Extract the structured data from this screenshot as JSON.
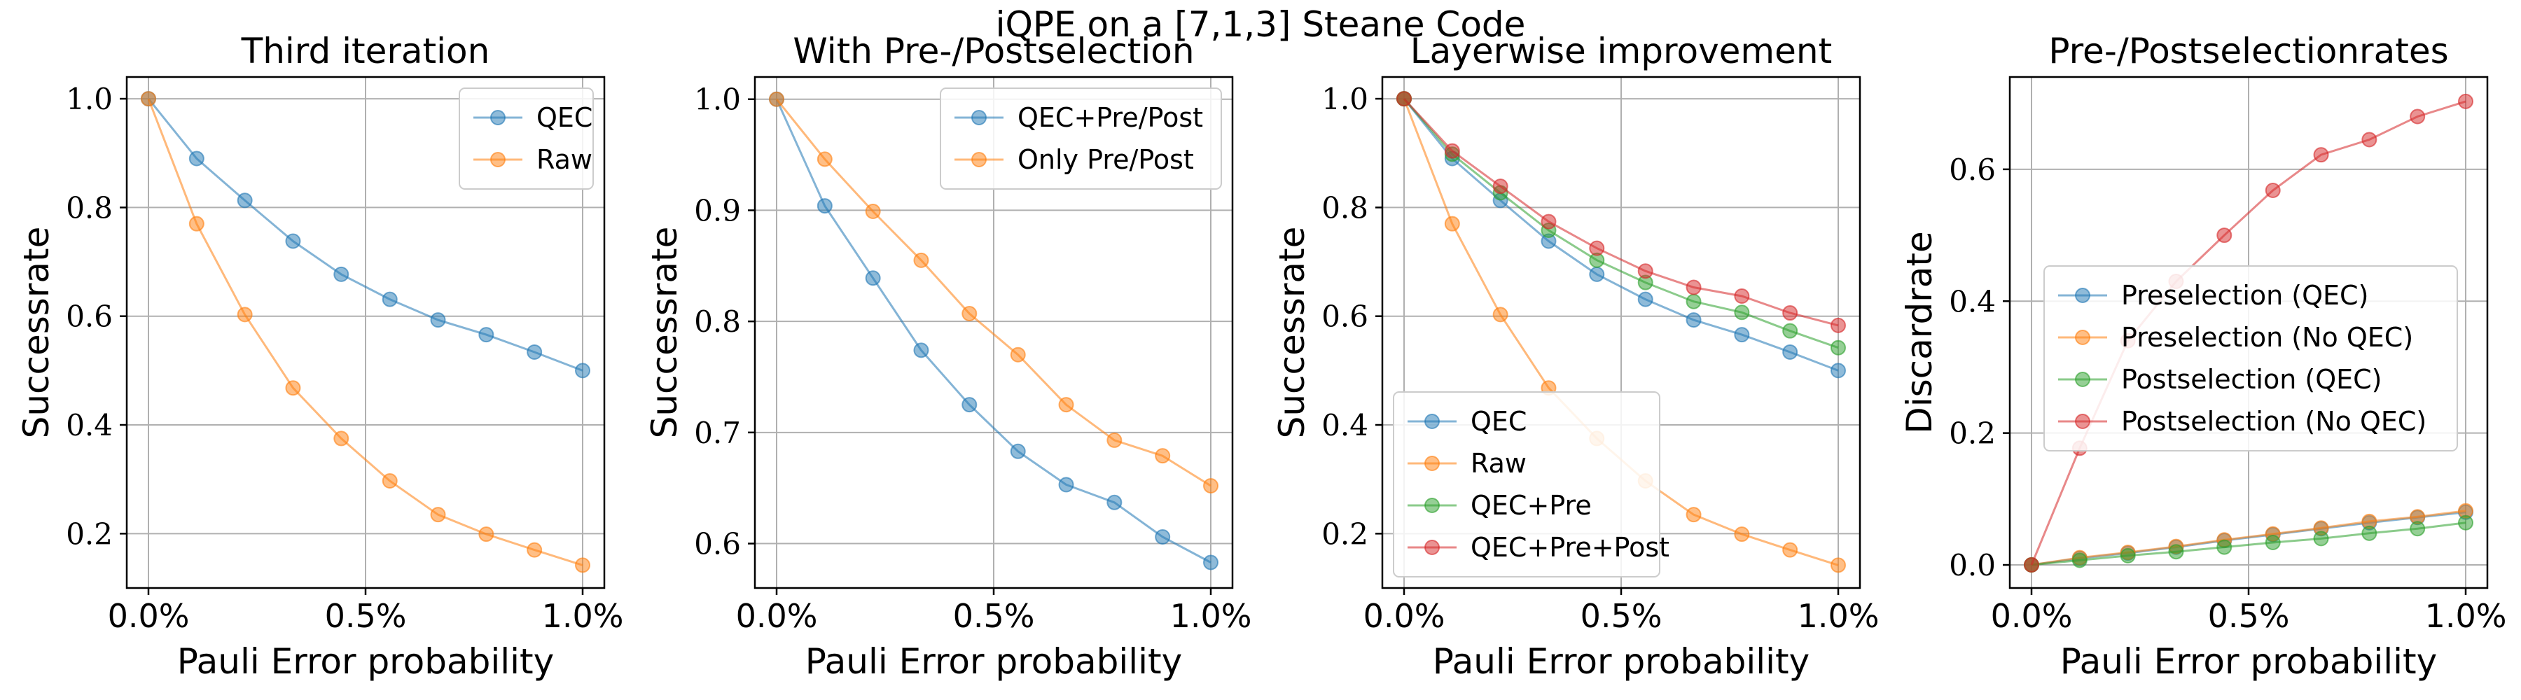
{
  "figure_title": "iQPE on a [7,1,3] Steane Code",
  "colors": {
    "blue": "#1f77b4",
    "orange": "#ff7f0e",
    "green": "#2ca02c",
    "red": "#d62728",
    "grid": "#b0b0b0",
    "axes": "#000000"
  },
  "chart_data": [
    {
      "type": "line",
      "title": "Third iteration",
      "xlabel": "Pauli Error probability",
      "ylabel": "Successrate",
      "x": [
        0,
        0.111,
        0.222,
        0.333,
        0.444,
        0.556,
        0.667,
        0.778,
        0.889,
        1.0
      ],
      "xlim": [
        -0.05,
        1.05
      ],
      "ylim": [
        0.1,
        1.04
      ],
      "xticks": [
        0,
        0.5,
        1.0
      ],
      "xtick_labels": [
        "0.0%",
        "0.5%",
        "1.0%"
      ],
      "yticks": [
        0.2,
        0.4,
        0.6,
        0.8,
        1.0
      ],
      "ytick_labels": [
        "0.2",
        "0.4",
        "0.6",
        "0.8",
        "1.0"
      ],
      "grid": true,
      "legend_position": "top-right",
      "series": [
        {
          "name": "QEC",
          "color": "#1f77b4",
          "values": [
            1.0,
            0.89,
            0.813,
            0.738,
            0.677,
            0.631,
            0.593,
            0.566,
            0.534,
            0.5
          ]
        },
        {
          "name": "Raw",
          "color": "#ff7f0e",
          "values": [
            1.0,
            0.77,
            0.603,
            0.468,
            0.375,
            0.297,
            0.235,
            0.199,
            0.17,
            0.142
          ]
        }
      ]
    },
    {
      "type": "line",
      "title": "With Pre-/Postselection",
      "xlabel": "Pauli Error probability",
      "ylabel": "Successrate",
      "x": [
        0,
        0.111,
        0.222,
        0.333,
        0.444,
        0.556,
        0.667,
        0.778,
        0.889,
        1.0
      ],
      "xlim": [
        -0.05,
        1.05
      ],
      "ylim": [
        0.56,
        1.02
      ],
      "xticks": [
        0,
        0.5,
        1.0
      ],
      "xtick_labels": [
        "0.0%",
        "0.5%",
        "1.0%"
      ],
      "yticks": [
        0.6,
        0.7,
        0.8,
        0.9,
        1.0
      ],
      "ytick_labels": [
        "0.6",
        "0.7",
        "0.8",
        "0.9",
        "1.0"
      ],
      "grid": true,
      "legend_position": "top-right",
      "series": [
        {
          "name": "QEC+Pre/Post",
          "color": "#1f77b4",
          "values": [
            1.0,
            0.904,
            0.839,
            0.774,
            0.725,
            0.683,
            0.653,
            0.637,
            0.606,
            0.583
          ]
        },
        {
          "name": "Only Pre/Post",
          "color": "#ff7f0e",
          "values": [
            1.0,
            0.946,
            0.899,
            0.855,
            0.807,
            0.77,
            0.725,
            0.693,
            0.679,
            0.652
          ]
        }
      ]
    },
    {
      "type": "line",
      "title": "Layerwise improvement",
      "xlabel": "Pauli Error probability",
      "ylabel": "Successrate",
      "x": [
        0,
        0.111,
        0.222,
        0.333,
        0.444,
        0.556,
        0.667,
        0.778,
        0.889,
        1.0
      ],
      "xlim": [
        -0.05,
        1.05
      ],
      "ylim": [
        0.1,
        1.04
      ],
      "xticks": [
        0,
        0.5,
        1.0
      ],
      "xtick_labels": [
        "0.0%",
        "0.5%",
        "1.0%"
      ],
      "yticks": [
        0.2,
        0.4,
        0.6,
        0.8,
        1.0
      ],
      "ytick_labels": [
        "0.2",
        "0.4",
        "0.6",
        "0.8",
        "1.0"
      ],
      "grid": true,
      "legend_position": "bottom-left",
      "series": [
        {
          "name": "QEC",
          "color": "#1f77b4",
          "values": [
            1.0,
            0.89,
            0.813,
            0.738,
            0.677,
            0.631,
            0.593,
            0.566,
            0.534,
            0.5
          ]
        },
        {
          "name": "Raw",
          "color": "#ff7f0e",
          "values": [
            1.0,
            0.77,
            0.603,
            0.468,
            0.375,
            0.297,
            0.235,
            0.199,
            0.17,
            0.142
          ]
        },
        {
          "name": "QEC+Pre",
          "color": "#2ca02c",
          "values": [
            1.0,
            0.898,
            0.827,
            0.758,
            0.703,
            0.662,
            0.627,
            0.607,
            0.573,
            0.542
          ]
        },
        {
          "name": "QEC+Pre+Post",
          "color": "#d62728",
          "values": [
            1.0,
            0.904,
            0.839,
            0.774,
            0.725,
            0.683,
            0.653,
            0.637,
            0.606,
            0.583
          ]
        }
      ]
    },
    {
      "type": "line",
      "title": "Pre-/Postselectionrates",
      "xlabel": "Pauli Error probability",
      "ylabel": "Discardrate",
      "x": [
        0,
        0.111,
        0.222,
        0.333,
        0.444,
        0.556,
        0.667,
        0.778,
        0.889,
        1.0
      ],
      "xlim": [
        -0.05,
        1.05
      ],
      "ylim": [
        -0.035,
        0.74
      ],
      "xticks": [
        0,
        0.5,
        1.0
      ],
      "xtick_labels": [
        "0.0%",
        "0.5%",
        "1.0%"
      ],
      "yticks": [
        0.0,
        0.2,
        0.4,
        0.6
      ],
      "ytick_labels": [
        "0.0",
        "0.2",
        "0.4",
        "0.6"
      ],
      "grid": true,
      "legend_position": "center",
      "series": [
        {
          "name": "Preselection (QEC)",
          "color": "#1f77b4",
          "values": [
            0.0,
            0.01,
            0.018,
            0.027,
            0.037,
            0.046,
            0.055,
            0.064,
            0.072,
            0.08
          ]
        },
        {
          "name": "Preselection (No QEC)",
          "color": "#ff7f0e",
          "values": [
            0.0,
            0.011,
            0.019,
            0.028,
            0.038,
            0.047,
            0.056,
            0.066,
            0.073,
            0.082
          ]
        },
        {
          "name": "Postselection (QEC)",
          "color": "#2ca02c",
          "values": [
            0.0,
            0.007,
            0.014,
            0.02,
            0.027,
            0.034,
            0.04,
            0.048,
            0.055,
            0.064
          ]
        },
        {
          "name": "Postselection (No QEC)",
          "color": "#d62728",
          "values": [
            0.0,
            0.177,
            0.34,
            0.43,
            0.5,
            0.568,
            0.622,
            0.645,
            0.68,
            0.703
          ]
        }
      ]
    }
  ]
}
